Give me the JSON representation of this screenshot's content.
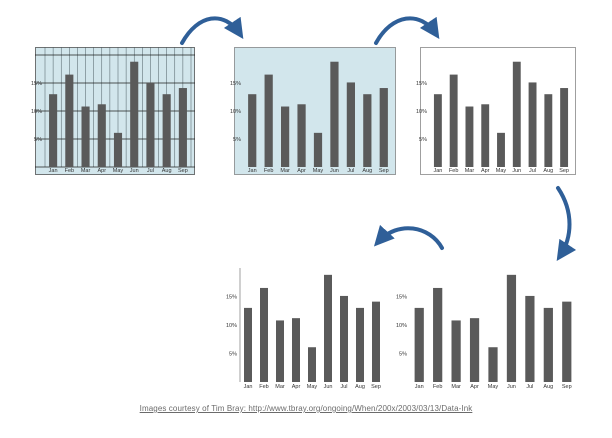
{
  "caption": "Images courtesy of Tim Bray: http://www.tbray.org/ongoing/When/200x/2003/03/13/Data-Ink",
  "colors": {
    "bar": "#5a5a5a",
    "panel_bg": "#d2e6ec",
    "grid": "#1f1f1f",
    "arrow": "#2f5f98",
    "text": "#333333"
  },
  "chart_data": [
    {
      "type": "bar",
      "step": 1,
      "background": "light blue",
      "gridlines": "dense vertical and horizontal",
      "frame": "full border",
      "categories": [
        "Jan",
        "Feb",
        "Mar",
        "Apr",
        "May",
        "Jun",
        "Jul",
        "Aug",
        "Sep"
      ],
      "values": [
        13,
        16.5,
        10.8,
        11.2,
        6.1,
        18.8,
        15.1,
        13,
        14.1
      ],
      "y_ticks": [
        "5%",
        "10%",
        "15%"
      ],
      "ylim": [
        0,
        20
      ]
    },
    {
      "type": "bar",
      "step": 2,
      "background": "light blue",
      "gridlines": "none",
      "frame": "border",
      "categories": [
        "Jan",
        "Feb",
        "Mar",
        "Apr",
        "May",
        "Jun",
        "Jul",
        "Aug",
        "Sep"
      ],
      "values": [
        13,
        16.5,
        10.8,
        11.2,
        6.1,
        18.8,
        15.1,
        13,
        14.1
      ],
      "y_ticks": [
        "5%",
        "10%",
        "15%"
      ],
      "ylim": [
        0,
        20
      ]
    },
    {
      "type": "bar",
      "step": 3,
      "background": "white",
      "gridlines": "none",
      "frame": "border",
      "categories": [
        "Jan",
        "Feb",
        "Mar",
        "Apr",
        "May",
        "Jun",
        "Jul",
        "Aug",
        "Sep"
      ],
      "values": [
        13,
        16.5,
        10.8,
        11.2,
        6.1,
        18.8,
        15.1,
        13,
        14.1
      ],
      "y_ticks": [
        "5%",
        "10%",
        "15%"
      ],
      "ylim": [
        0,
        20
      ]
    },
    {
      "type": "bar",
      "step": 4,
      "background": "white",
      "gridlines": "none",
      "frame": "axes only",
      "categories": [
        "Jan",
        "Feb",
        "Mar",
        "Apr",
        "May",
        "Jun",
        "Jul",
        "Aug",
        "Sep"
      ],
      "values": [
        13,
        16.5,
        10.8,
        11.2,
        6.1,
        18.8,
        15.1,
        13,
        14.1
      ],
      "y_ticks": [
        "5%",
        "10%",
        "15%"
      ],
      "ylim": [
        0,
        20
      ]
    },
    {
      "type": "bar",
      "step": 5,
      "background": "white",
      "gridlines": "none",
      "frame": "none",
      "categories": [
        "Jan",
        "Feb",
        "Mar",
        "Apr",
        "May",
        "Jun",
        "Jul",
        "Aug",
        "Sep"
      ],
      "values": [
        13,
        16.5,
        10.8,
        11.2,
        6.1,
        18.8,
        15.1,
        13,
        14.1
      ],
      "y_ticks": [
        "5%",
        "10%",
        "15%"
      ],
      "ylim": [
        0,
        20
      ]
    }
  ]
}
